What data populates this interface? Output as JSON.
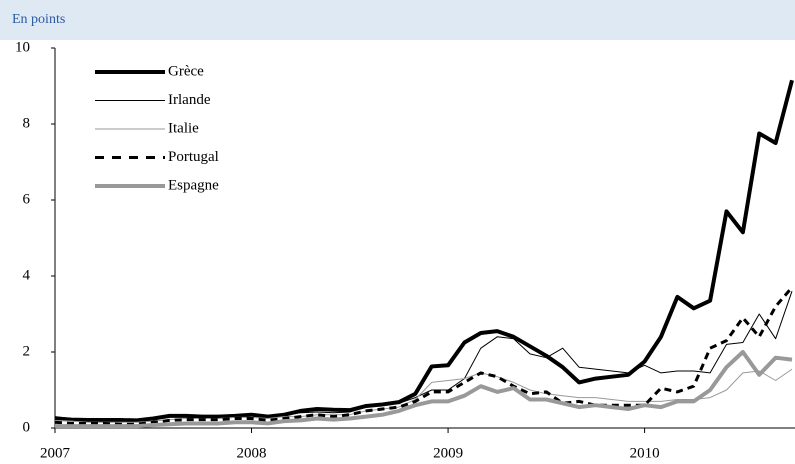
{
  "chart_data": {
    "type": "line",
    "subtitle": "En points",
    "categories": [
      "2007",
      null,
      null,
      null,
      null,
      null,
      null,
      null,
      null,
      null,
      null,
      null,
      "2008",
      null,
      null,
      null,
      null,
      null,
      null,
      null,
      null,
      null,
      null,
      null,
      "2009",
      null,
      null,
      null,
      null,
      null,
      null,
      null,
      null,
      null,
      null,
      null,
      "2010",
      null,
      null,
      null,
      null,
      null,
      null,
      null,
      null,
      null
    ],
    "ylim": [
      0,
      10
    ],
    "yticks": [
      0,
      2,
      4,
      6,
      8,
      10
    ],
    "grid": false,
    "series": [
      {
        "name": "Grèce",
        "color": "#000000",
        "width": 4,
        "dash": false,
        "values": [
          0.25,
          0.22,
          0.21,
          0.21,
          0.21,
          0.2,
          0.25,
          0.32,
          0.32,
          0.3,
          0.3,
          0.32,
          0.35,
          0.3,
          0.35,
          0.45,
          0.5,
          0.48,
          0.47,
          0.58,
          0.62,
          0.68,
          0.9,
          1.62,
          1.65,
          2.25,
          2.5,
          2.55,
          2.4,
          2.15,
          1.9,
          1.6,
          1.2,
          1.3,
          1.35,
          1.4,
          1.75,
          2.4,
          3.45,
          3.15,
          3.35,
          5.7,
          5.15,
          7.75,
          7.5,
          9.15
        ]
      },
      {
        "name": "Irlande",
        "color": "#000000",
        "width": 1,
        "dash": false,
        "values": [
          0.3,
          0.25,
          0.22,
          0.22,
          0.2,
          0.2,
          0.22,
          0.3,
          0.32,
          0.3,
          0.3,
          0.32,
          0.33,
          0.3,
          0.35,
          0.4,
          0.42,
          0.4,
          0.42,
          0.55,
          0.6,
          0.65,
          0.8,
          1.0,
          1.0,
          1.3,
          2.1,
          2.4,
          2.35,
          1.95,
          1.85,
          2.1,
          1.6,
          1.55,
          1.5,
          1.45,
          1.65,
          1.45,
          1.5,
          1.5,
          1.45,
          2.2,
          2.25,
          3.0,
          2.35,
          3.6
        ]
      },
      {
        "name": "Italie",
        "color": "#999999",
        "width": 1,
        "dash": false,
        "values": [
          0.2,
          0.18,
          0.15,
          0.15,
          0.15,
          0.15,
          0.18,
          0.22,
          0.25,
          0.25,
          0.25,
          0.28,
          0.28,
          0.25,
          0.3,
          0.3,
          0.35,
          0.35,
          0.35,
          0.45,
          0.5,
          0.55,
          0.75,
          1.2,
          1.25,
          1.3,
          1.45,
          1.35,
          1.2,
          1.0,
          0.9,
          0.85,
          0.8,
          0.8,
          0.75,
          0.7,
          0.7,
          0.7,
          0.75,
          0.75,
          0.8,
          1.0,
          1.45,
          1.5,
          1.25,
          1.55
        ]
      },
      {
        "name": "Portugal",
        "color": "#000000",
        "width": 3,
        "dash": true,
        "values": [
          0.15,
          0.12,
          0.12,
          0.12,
          0.1,
          0.1,
          0.15,
          0.2,
          0.22,
          0.22,
          0.22,
          0.25,
          0.25,
          0.2,
          0.25,
          0.3,
          0.35,
          0.3,
          0.35,
          0.45,
          0.5,
          0.55,
          0.7,
          0.95,
          0.95,
          1.2,
          1.45,
          1.35,
          1.1,
          0.9,
          0.95,
          0.65,
          0.7,
          0.6,
          0.6,
          0.6,
          0.6,
          1.05,
          0.95,
          1.1,
          2.1,
          2.3,
          2.9,
          2.4,
          3.2,
          3.7
        ]
      },
      {
        "name": "Espagne",
        "color": "#999999",
        "width": 4,
        "dash": false,
        "values": [
          0.05,
          0.05,
          0.05,
          0.05,
          0.05,
          0.05,
          0.08,
          0.1,
          0.12,
          0.12,
          0.12,
          0.15,
          0.15,
          0.12,
          0.18,
          0.2,
          0.25,
          0.22,
          0.25,
          0.3,
          0.35,
          0.45,
          0.6,
          0.7,
          0.7,
          0.85,
          1.1,
          0.95,
          1.05,
          0.75,
          0.75,
          0.65,
          0.55,
          0.6,
          0.55,
          0.5,
          0.6,
          0.55,
          0.7,
          0.7,
          1.0,
          1.6,
          2.0,
          1.4,
          1.85,
          1.8
        ]
      }
    ]
  }
}
